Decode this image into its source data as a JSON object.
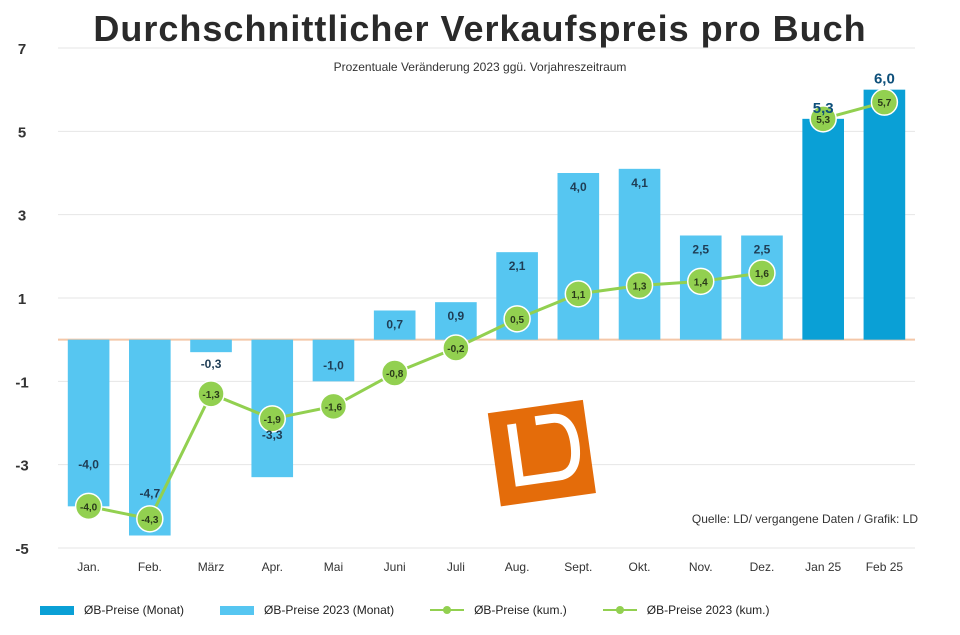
{
  "title": "Durchschnittlicher Verkaufspreis pro Buch",
  "subtitle": "Prozentuale Veränderung 2023 ggü. Vorjahreszeitraum",
  "source": "Quelle: LD/ vergangene Daten / Grafik: LD",
  "logo_text": "LD",
  "colors": {
    "bar_current": "#0aa0d6",
    "bar_prior": "#56c6f1",
    "line": "#92d050",
    "zero_line": "#f4c7a8",
    "grid": "#e6e6e6",
    "logo": "#e46c0a"
  },
  "legend": {
    "bar_current": "ØB-Preise (Monat)",
    "bar_prior": "ØB-Preise 2023 (Monat)",
    "line_current": "ØB-Preise (kum.)",
    "line_prior": "ØB-Preise 2023 (kum.)"
  },
  "chart_data": {
    "type": "bar",
    "categories": [
      "Jan.",
      "Feb.",
      "März",
      "Apr.",
      "Mai",
      "Juni",
      "Juli",
      "Aug.",
      "Sept.",
      "Okt.",
      "Nov.",
      "Dez.",
      "Jan 25",
      "Feb 25"
    ],
    "y_ticks": [
      7,
      5,
      3,
      1,
      -1,
      -3,
      -5
    ],
    "ylim": [
      -5,
      7
    ],
    "grid": true,
    "legend_position": "bottom",
    "series": [
      {
        "name": "ØB-Preise 2023 (Monat)",
        "type": "bar",
        "values": [
          -4.0,
          -4.7,
          -0.3,
          -3.3,
          -1.0,
          0.7,
          0.9,
          2.1,
          4.0,
          4.1,
          2.5,
          2.5,
          null,
          null
        ],
        "labels": [
          "-4,0",
          "-4,7",
          "-0,3",
          "-3,3",
          "-1,0",
          "0,7",
          "0,9",
          "2,1",
          "4,0",
          "4,1",
          "2,5",
          "2,5",
          "",
          ""
        ]
      },
      {
        "name": "ØB-Preise (Monat)",
        "type": "bar",
        "values": [
          null,
          null,
          null,
          null,
          null,
          null,
          null,
          null,
          null,
          null,
          null,
          null,
          5.3,
          6.0
        ],
        "labels": [
          "",
          "",
          "",
          "",
          "",
          "",
          "",
          "",
          "",
          "",
          "",
          "",
          "5,3",
          "6,0"
        ]
      },
      {
        "name": "ØB-Preise 2023 (kum.)",
        "type": "line",
        "values": [
          -4.0,
          -4.3,
          -1.3,
          -1.9,
          -1.6,
          -0.8,
          -0.2,
          0.5,
          1.1,
          1.3,
          1.4,
          1.6,
          null,
          null
        ],
        "labels": [
          "-4,0",
          "-4,3",
          "-1,3",
          "-1,9",
          "-1,6",
          "-0,8",
          "-0,2",
          "0,5",
          "1,1",
          "1,3",
          "1,4",
          "1,6",
          "",
          ""
        ]
      },
      {
        "name": "ØB-Preise (kum.)",
        "type": "line",
        "values": [
          null,
          null,
          null,
          null,
          null,
          null,
          null,
          null,
          null,
          null,
          null,
          null,
          5.3,
          5.7
        ],
        "labels": [
          "",
          "",
          "",
          "",
          "",
          "",
          "",
          "",
          "",
          "",
          "",
          "",
          "5,3",
          "5,7"
        ]
      }
    ]
  }
}
